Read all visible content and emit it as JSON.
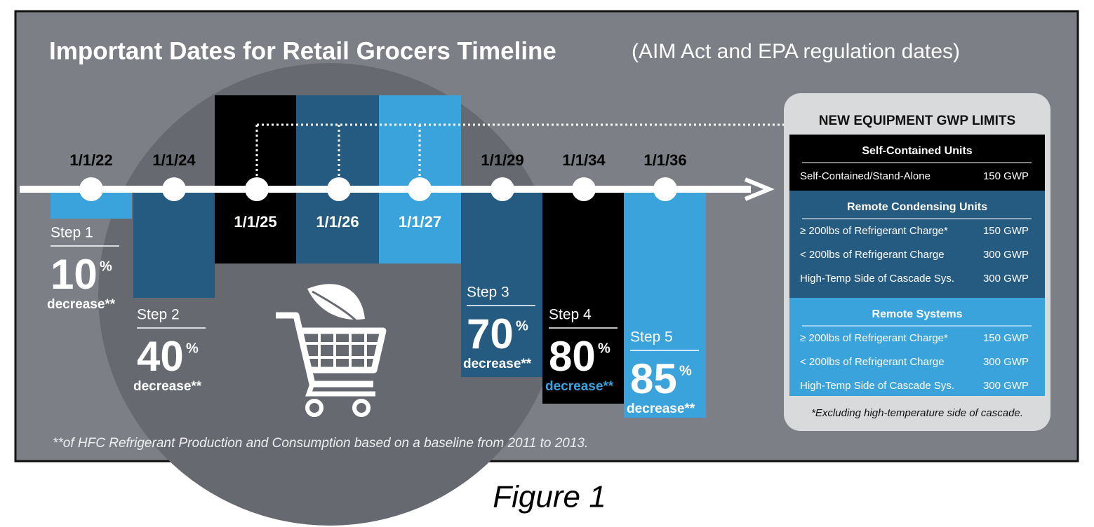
{
  "title": "Important Dates for Retail Grocers Timeline",
  "subtitle": "(AIM Act and EPA regulation dates)",
  "timeline": {
    "dates": [
      "1/1/22",
      "1/1/24",
      "1/1/25",
      "1/1/26",
      "1/1/27",
      "1/1/29",
      "1/1/34",
      "1/1/36"
    ]
  },
  "steps": [
    {
      "label": "Step 1",
      "value": "10",
      "unit": "%",
      "caption": "decrease**"
    },
    {
      "label": "Step 2",
      "value": "40",
      "unit": "%",
      "caption": "decrease**"
    },
    {
      "label": "Step 3",
      "value": "70",
      "unit": "%",
      "caption": "decrease**"
    },
    {
      "label": "Step 4",
      "value": "80",
      "unit": "%",
      "caption": "decrease**"
    },
    {
      "label": "Step 5",
      "value": "85",
      "unit": "%",
      "caption": "decrease**"
    }
  ],
  "footnote": "**of HFC Refrigerant Production and Consumption based on a baseline from 2011 to 2013.",
  "panel": {
    "title": "NEW EQUIPMENT GWP LIMITS",
    "sections": [
      {
        "title": "Self-Contained Units",
        "rows": [
          [
            "Self-Contained/Stand-Alone",
            "150 GWP"
          ]
        ]
      },
      {
        "title": "Remote Condensing Units",
        "rows": [
          [
            "≥ 200lbs of Refrigerant Charge*",
            "150 GWP"
          ],
          [
            "< 200lbs of Refrigerant Charge",
            "300 GWP"
          ],
          [
            "High-Temp Side of Cascade Sys.",
            "300 GWP"
          ]
        ]
      },
      {
        "title": "Remote Systems",
        "rows": [
          [
            "≥ 200lbs of Refrigerant Charge*",
            "150 GWP"
          ],
          [
            "< 200lbs of Refrigerant Charge",
            "300 GWP"
          ],
          [
            "High-Temp Side of Cascade Sys.",
            "300 GWP"
          ]
        ]
      }
    ],
    "note": "*Excluding high-temperature side of cascade."
  },
  "caption": "Figure 1"
}
